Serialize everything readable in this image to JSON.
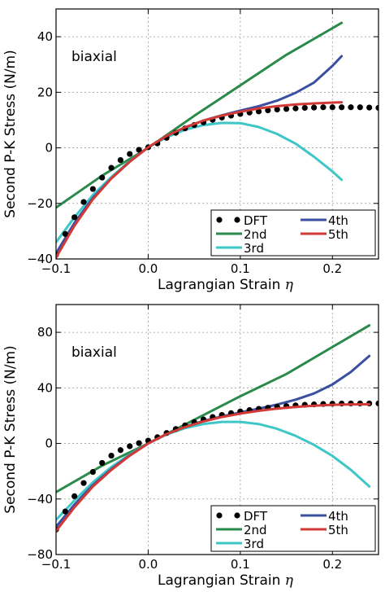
{
  "chart_data": [
    {
      "type": "line",
      "annotation": "biaxial",
      "xlabel": "Lagrangian Strain",
      "xlabel_symbol": "η",
      "ylabel": "Second P-K Stress (N/m)",
      "xlim": [
        -0.1,
        0.25
      ],
      "ylim": [
        -40,
        50
      ],
      "xticks": [
        -0.1,
        0.0,
        0.1,
        0.2
      ],
      "xtick_labels": [
        "−0.1",
        "0.0",
        "0.1",
        "0.2"
      ],
      "yticks": [
        -40,
        -20,
        0,
        20,
        40
      ],
      "ytick_labels": [
        "−40",
        "−20",
        "0",
        "20",
        "40"
      ],
      "grid": true,
      "legend_position": "bottom-right",
      "legend_columns": 2,
      "series": [
        {
          "name": "DFT",
          "style": "markers",
          "color": "#000000",
          "x": [
            -0.1,
            -0.09,
            -0.08,
            -0.07,
            -0.06,
            -0.05,
            -0.04,
            -0.03,
            -0.02,
            -0.01,
            0.0,
            0.01,
            0.02,
            0.03,
            0.04,
            0.05,
            0.06,
            0.07,
            0.08,
            0.09,
            0.1,
            0.11,
            0.12,
            0.13,
            0.14,
            0.15,
            0.16,
            0.17,
            0.18,
            0.19,
            0.2,
            0.21,
            0.22,
            0.23,
            0.24,
            0.25
          ],
          "y": [
            -38.5,
            -31,
            -25,
            -19.5,
            -14.8,
            -10.7,
            -7.2,
            -4.4,
            -2.2,
            -0.7,
            0.2,
            1.6,
            3.6,
            5.4,
            7.0,
            8.2,
            9.2,
            10.1,
            10.9,
            11.6,
            12.2,
            12.7,
            13.1,
            13.5,
            13.8,
            14.0,
            14.2,
            14.4,
            14.5,
            14.6,
            14.6,
            14.6,
            14.6,
            14.6,
            14.5,
            14.4
          ]
        },
        {
          "name": "2nd",
          "style": "line",
          "color": "#2a8a4a",
          "x": [
            -0.1,
            -0.05,
            0.0,
            0.05,
            0.1,
            0.15,
            0.21
          ],
          "y": [
            -21.5,
            -10,
            0,
            11.5,
            22.5,
            33.5,
            45
          ]
        },
        {
          "name": "3rd",
          "style": "line",
          "color": "#3fc6c6",
          "x": [
            -0.1,
            -0.08,
            -0.06,
            -0.04,
            -0.02,
            0.0,
            0.02,
            0.04,
            0.06,
            0.08,
            0.1,
            0.12,
            0.14,
            0.16,
            0.18,
            0.2,
            0.21
          ],
          "y": [
            -34,
            -25,
            -17,
            -10.5,
            -4.8,
            0.2,
            3.8,
            6.5,
            8.2,
            9.0,
            8.9,
            7.5,
            5.0,
            1.5,
            -3.2,
            -8.5,
            -11.5
          ]
        },
        {
          "name": "4th",
          "style": "line",
          "color": "#3b4fa0",
          "x": [
            -0.1,
            -0.08,
            -0.06,
            -0.04,
            -0.02,
            0.0,
            0.02,
            0.04,
            0.06,
            0.08,
            0.1,
            0.12,
            0.14,
            0.16,
            0.18,
            0.2,
            0.21
          ],
          "y": [
            -38,
            -27,
            -18,
            -11,
            -5,
            0.2,
            4.2,
            7.3,
            9.8,
            11.7,
            13.4,
            15.0,
            17.0,
            19.8,
            23.5,
            29.5,
            33
          ]
        },
        {
          "name": "5th",
          "style": "line",
          "color": "#d13a36",
          "x": [
            -0.1,
            -0.08,
            -0.06,
            -0.04,
            -0.02,
            0.0,
            0.02,
            0.04,
            0.06,
            0.08,
            0.1,
            0.12,
            0.14,
            0.16,
            0.18,
            0.2,
            0.21
          ],
          "y": [
            -39.5,
            -28,
            -18.5,
            -11,
            -5,
            0.2,
            4.3,
            7.4,
            9.8,
            11.6,
            13.0,
            14.2,
            15.0,
            15.6,
            16.0,
            16.3,
            16.4
          ]
        }
      ]
    },
    {
      "type": "line",
      "annotation": "biaxial",
      "xlabel": "Lagrangian Strain",
      "xlabel_symbol": "η",
      "ylabel": "Second P-K Stress (N/m)",
      "xlim": [
        -0.1,
        0.25
      ],
      "ylim": [
        -80,
        100
      ],
      "xticks": [
        -0.1,
        0.0,
        0.1,
        0.2
      ],
      "xtick_labels": [
        "−0.1",
        "0.0",
        "0.1",
        "0.2"
      ],
      "yticks": [
        -80,
        -40,
        0,
        40,
        80
      ],
      "ytick_labels": [
        "−80",
        "−40",
        "0",
        "40",
        "80"
      ],
      "grid": true,
      "legend_position": "bottom-right",
      "legend_columns": 2,
      "series": [
        {
          "name": "DFT",
          "style": "markers",
          "color": "#000000",
          "x": [
            -0.1,
            -0.09,
            -0.08,
            -0.07,
            -0.06,
            -0.05,
            -0.04,
            -0.03,
            -0.02,
            -0.01,
            0.0,
            0.01,
            0.02,
            0.03,
            0.04,
            0.05,
            0.06,
            0.07,
            0.08,
            0.09,
            0.1,
            0.11,
            0.12,
            0.13,
            0.14,
            0.15,
            0.16,
            0.17,
            0.18,
            0.19,
            0.2,
            0.21,
            0.22,
            0.23,
            0.24,
            0.25
          ],
          "y": [
            -62,
            -49,
            -38,
            -28.5,
            -20.5,
            -14,
            -8.8,
            -4.8,
            -2.0,
            0.2,
            2.0,
            4.5,
            7.5,
            10.4,
            13.0,
            15.3,
            17.3,
            19.0,
            20.5,
            21.8,
            23.0,
            24.0,
            24.9,
            25.7,
            26.3,
            26.9,
            27.4,
            27.8,
            28.1,
            28.4,
            28.6,
            28.7,
            28.8,
            28.8,
            28.8,
            28.8
          ]
        },
        {
          "name": "2nd",
          "style": "line",
          "color": "#2a8a4a",
          "x": [
            -0.1,
            -0.05,
            0.0,
            0.05,
            0.1,
            0.15,
            0.24
          ],
          "y": [
            -35,
            -16,
            0,
            17,
            34,
            50,
            85
          ]
        },
        {
          "name": "3rd",
          "style": "line",
          "color": "#3fc6c6",
          "x": [
            -0.1,
            -0.08,
            -0.06,
            -0.04,
            -0.02,
            0.0,
            0.02,
            0.04,
            0.06,
            0.08,
            0.1,
            0.12,
            0.14,
            0.16,
            0.18,
            0.2,
            0.22,
            0.24
          ],
          "y": [
            -55,
            -41,
            -28,
            -17,
            -8,
            0,
            6.5,
            11,
            14,
            15.5,
            15.5,
            14,
            10.5,
            5.5,
            -1,
            -9,
            -19,
            -31
          ]
        },
        {
          "name": "4th",
          "style": "line",
          "color": "#3b4fa0",
          "x": [
            -0.1,
            -0.08,
            -0.06,
            -0.04,
            -0.02,
            0.0,
            0.02,
            0.04,
            0.06,
            0.08,
            0.1,
            0.12,
            0.14,
            0.16,
            0.18,
            0.2,
            0.22,
            0.24
          ],
          "y": [
            -60,
            -44,
            -30,
            -18.5,
            -8.5,
            0,
            6.8,
            12,
            16.2,
            19.5,
            22.3,
            25,
            28,
            31.5,
            36,
            42.5,
            51.5,
            63
          ]
        },
        {
          "name": "5th",
          "style": "line",
          "color": "#d13a36",
          "x": [
            -0.1,
            -0.08,
            -0.06,
            -0.04,
            -0.02,
            0.0,
            0.02,
            0.04,
            0.06,
            0.08,
            0.1,
            0.12,
            0.14,
            0.16,
            0.18,
            0.2,
            0.22,
            0.24
          ],
          "y": [
            -63,
            -46,
            -31,
            -19,
            -8.8,
            0,
            6.8,
            11.8,
            15.8,
            19,
            21.5,
            23.5,
            25.1,
            26.3,
            27.2,
            27.8,
            28.1,
            28.2
          ]
        }
      ]
    }
  ]
}
